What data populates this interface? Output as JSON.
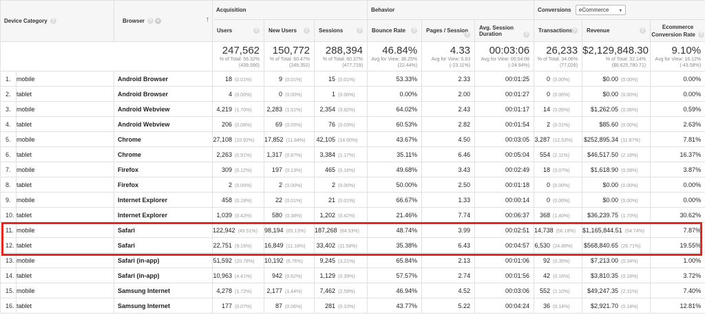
{
  "colors": {
    "highlight": "#e8251b",
    "header_bg": "#f6f6f6",
    "border": "#e0e0e0"
  },
  "header": {
    "device_category": "Device Category",
    "browser": "Browser",
    "acquisition": "Acquisition",
    "behavior": "Behavior",
    "conversions": "Conversions",
    "conversions_select": "eCommerce",
    "cols": {
      "users": "Users",
      "new_users": "New Users",
      "sessions": "Sessions",
      "bounce_rate": "Bounce Rate",
      "pages_session": "Pages / Session",
      "avg_duration": "Avg. Session Duration",
      "transactions": "Transactions",
      "revenue": "Revenue",
      "ecom_rate_1": "Ecommerce",
      "ecom_rate_2": "Conversion Rate"
    }
  },
  "totals": {
    "users": {
      "value": "247,562",
      "sub1": "% of Total: 56.32%",
      "sub2": "(439,590)"
    },
    "new_users": {
      "value": "150,772",
      "sub1": "% of Total: 60.47%",
      "sub2": "(249,352)"
    },
    "sessions": {
      "value": "288,394",
      "sub1": "% of Total: 60.37%",
      "sub2": "(477,719)"
    },
    "bounce_rate": {
      "value": "46.84%",
      "sub1": "Avg for View: 38.25%",
      "sub2": "(22.44%)"
    },
    "pages_session": {
      "value": "4.33",
      "sub1": "Avg for View: 5.63",
      "sub2": "(-23.11%)"
    },
    "avg_duration": {
      "value": "00:03:06",
      "sub1": "Avg for View: 00:04:08",
      "sub2": "(-24.94%)"
    },
    "transactions": {
      "value": "26,233",
      "sub1": "% of Total: 34.06%",
      "sub2": "(77,026)"
    },
    "revenue": {
      "value": "$2,129,848.30",
      "sub1": "% of Total: 32.14%",
      "sub2": "($6,625,780.71)"
    },
    "ecom_rate": {
      "value": "9.10%",
      "sub1": "Avg for View: 16.12%",
      "sub2": "(-43.58%)"
    }
  },
  "rows": [
    {
      "n": "1.",
      "device": "mobile",
      "browser": "Android Browser",
      "users": "18",
      "users_pct": "(0.01%)",
      "new_users": "9",
      "new_users_pct": "(0.01%)",
      "sessions": "15",
      "sessions_pct": "(0.01%)",
      "bounce": "53.33%",
      "pages": "2.33",
      "duration": "00:01:25",
      "trans": "0",
      "trans_pct": "(0.00%)",
      "revenue": "$0.00",
      "revenue_pct": "(0.00%)",
      "rate": "0.00%"
    },
    {
      "n": "2.",
      "device": "tablet",
      "browser": "Android Browser",
      "users": "4",
      "users_pct": "(0.00%)",
      "new_users": "0",
      "new_users_pct": "(0.00%)",
      "sessions": "1",
      "sessions_pct": "(0.00%)",
      "bounce": "0.00%",
      "pages": "2.00",
      "duration": "00:01:27",
      "trans": "0",
      "trans_pct": "(0.00%)",
      "revenue": "$0.00",
      "revenue_pct": "(0.00%)",
      "rate": "0.00%"
    },
    {
      "n": "3.",
      "device": "mobile",
      "browser": "Android Webview",
      "users": "4,219",
      "users_pct": "(1.70%)",
      "new_users": "2,283",
      "new_users_pct": "(1.51%)",
      "sessions": "2,354",
      "sessions_pct": "(0.82%)",
      "bounce": "64.02%",
      "pages": "2.43",
      "duration": "00:01:17",
      "trans": "14",
      "trans_pct": "(0.05%)",
      "revenue": "$1,262.05",
      "revenue_pct": "(0.06%)",
      "rate": "0.59%"
    },
    {
      "n": "4.",
      "device": "tablet",
      "browser": "Android Webview",
      "users": "206",
      "users_pct": "(0.08%)",
      "new_users": "69",
      "new_users_pct": "(0.05%)",
      "sessions": "76",
      "sessions_pct": "(0.03%)",
      "bounce": "60.53%",
      "pages": "2.82",
      "duration": "00:01:54",
      "trans": "2",
      "trans_pct": "(0.01%)",
      "revenue": "$85.60",
      "revenue_pct": "(0.00%)",
      "rate": "2.63%"
    },
    {
      "n": "5.",
      "device": "mobile",
      "browser": "Chrome",
      "users": "27,108",
      "users_pct": "(10.92%)",
      "new_users": "17,852",
      "new_users_pct": "(11.84%)",
      "sessions": "42,105",
      "sessions_pct": "(14.60%)",
      "bounce": "43.67%",
      "pages": "4.50",
      "duration": "00:03:05",
      "trans": "3,287",
      "trans_pct": "(12.53%)",
      "revenue": "$252,895.34",
      "revenue_pct": "(11.87%)",
      "rate": "7.81%"
    },
    {
      "n": "6.",
      "device": "tablet",
      "browser": "Chrome",
      "users": "2,263",
      "users_pct": "(0.91%)",
      "new_users": "1,317",
      "new_users_pct": "(0.87%)",
      "sessions": "3,384",
      "sessions_pct": "(1.17%)",
      "bounce": "35.11%",
      "pages": "6.46",
      "duration": "00:05:04",
      "trans": "554",
      "trans_pct": "(2.11%)",
      "revenue": "$46,517.50",
      "revenue_pct": "(2.18%)",
      "rate": "16.37%"
    },
    {
      "n": "7.",
      "device": "mobile",
      "browser": "Firefox",
      "users": "309",
      "users_pct": "(0.12%)",
      "new_users": "197",
      "new_users_pct": "(0.13%)",
      "sessions": "465",
      "sessions_pct": "(0.16%)",
      "bounce": "49.68%",
      "pages": "3.43",
      "duration": "00:02:49",
      "trans": "18",
      "trans_pct": "(0.07%)",
      "revenue": "$1,618.90",
      "revenue_pct": "(0.08%)",
      "rate": "3.87%"
    },
    {
      "n": "8.",
      "device": "tablet",
      "browser": "Firefox",
      "users": "2",
      "users_pct": "(0.00%)",
      "new_users": "2",
      "new_users_pct": "(0.00%)",
      "sessions": "2",
      "sessions_pct": "(0.00%)",
      "bounce": "50.00%",
      "pages": "2.50",
      "duration": "00:01:18",
      "trans": "0",
      "trans_pct": "(0.00%)",
      "revenue": "$0.00",
      "revenue_pct": "(0.00%)",
      "rate": "0.00%"
    },
    {
      "n": "9.",
      "device": "mobile",
      "browser": "Internet Explorer",
      "users": "458",
      "users_pct": "(0.18%)",
      "new_users": "22",
      "new_users_pct": "(0.01%)",
      "sessions": "21",
      "sessions_pct": "(0.01%)",
      "bounce": "66.67%",
      "pages": "1.33",
      "duration": "00:00:14",
      "trans": "0",
      "trans_pct": "(0.00%)",
      "revenue": "$0.00",
      "revenue_pct": "(0.00%)",
      "rate": "0.00%"
    },
    {
      "n": "10.",
      "device": "tablet",
      "browser": "Internet Explorer",
      "users": "1,039",
      "users_pct": "(0.42%)",
      "new_users": "580",
      "new_users_pct": "(0.38%)",
      "sessions": "1,202",
      "sessions_pct": "(0.42%)",
      "bounce": "21.46%",
      "pages": "7.74",
      "duration": "00:06:37",
      "trans": "368",
      "trans_pct": "(1.40%)",
      "revenue": "$36,239.75",
      "revenue_pct": "(1.70%)",
      "rate": "30.62%"
    },
    {
      "n": "11.",
      "device": "mobile",
      "browser": "Safari",
      "users": "122,942",
      "users_pct": "(49.51%)",
      "new_users": "98,194",
      "new_users_pct": "(65.13%)",
      "sessions": "187,268",
      "sessions_pct": "(64.93%)",
      "bounce": "48.74%",
      "pages": "3.99",
      "duration": "00:02:51",
      "trans": "14,738",
      "trans_pct": "(56.18%)",
      "revenue": "$1,165,844.51",
      "revenue_pct": "(54.74%)",
      "rate": "7.87%"
    },
    {
      "n": "12.",
      "device": "tablet",
      "browser": "Safari",
      "users": "22,751",
      "users_pct": "(9.16%)",
      "new_users": "16,849",
      "new_users_pct": "(11.18%)",
      "sessions": "33,402",
      "sessions_pct": "(11.58%)",
      "bounce": "35.38%",
      "pages": "6.43",
      "duration": "00:04:57",
      "trans": "6,530",
      "trans_pct": "(24.89%)",
      "revenue": "$568,840.65",
      "revenue_pct": "(26.71%)",
      "rate": "19.55%"
    },
    {
      "n": "13.",
      "device": "mobile",
      "browser": "Safari (in-app)",
      "users": "51,592",
      "users_pct": "(20.78%)",
      "new_users": "10,192",
      "new_users_pct": "(6.76%)",
      "sessions": "9,245",
      "sessions_pct": "(3.21%)",
      "bounce": "65.84%",
      "pages": "2.13",
      "duration": "00:01:06",
      "trans": "92",
      "trans_pct": "(0.35%)",
      "revenue": "$7,213.00",
      "revenue_pct": "(0.34%)",
      "rate": "1.00%"
    },
    {
      "n": "14.",
      "device": "tablet",
      "browser": "Safari (in-app)",
      "users": "10,963",
      "users_pct": "(4.41%)",
      "new_users": "942",
      "new_users_pct": "(0.62%)",
      "sessions": "1,129",
      "sessions_pct": "(0.39%)",
      "bounce": "57.57%",
      "pages": "2.74",
      "duration": "00:01:56",
      "trans": "42",
      "trans_pct": "(0.16%)",
      "revenue": "$3,810.35",
      "revenue_pct": "(0.18%)",
      "rate": "3.72%"
    },
    {
      "n": "15.",
      "device": "mobile",
      "browser": "Samsung Internet",
      "users": "4,278",
      "users_pct": "(1.72%)",
      "new_users": "2,177",
      "new_users_pct": "(1.44%)",
      "sessions": "7,462",
      "sessions_pct": "(2.59%)",
      "bounce": "46.94%",
      "pages": "4.52",
      "duration": "00:03:06",
      "trans": "552",
      "trans_pct": "(2.10%)",
      "revenue": "$49,247.35",
      "revenue_pct": "(2.31%)",
      "rate": "7.40%"
    },
    {
      "n": "16.",
      "device": "tablet",
      "browser": "Samsung Internet",
      "users": "177",
      "users_pct": "(0.07%)",
      "new_users": "87",
      "new_users_pct": "(0.06%)",
      "sessions": "281",
      "sessions_pct": "(0.10%)",
      "bounce": "43.77%",
      "pages": "5.22",
      "duration": "00:04:24",
      "trans": "36",
      "trans_pct": "(0.14%)",
      "revenue": "$2,921.70",
      "revenue_pct": "(0.14%)",
      "rate": "12.81%"
    }
  ]
}
